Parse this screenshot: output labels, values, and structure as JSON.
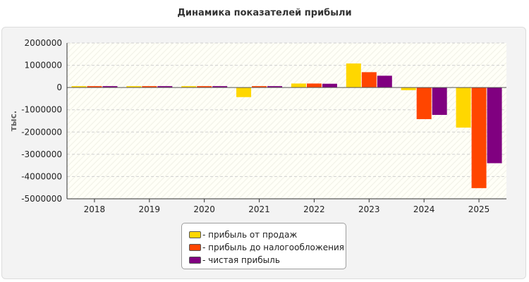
{
  "chart_data": {
    "type": "bar",
    "title": "Динамика показателей прибыли",
    "xlabel": "",
    "ylabel": "тыс.",
    "ylim": [
      -5000000,
      2000000
    ],
    "yticks": [
      2000000,
      1000000,
      0,
      -1000000,
      -2000000,
      -3000000,
      -4000000,
      -5000000
    ],
    "categories": [
      "2018",
      "2019",
      "2020",
      "2021",
      "2022",
      "2023",
      "2024",
      "2025"
    ],
    "series": [
      {
        "name": "- прибыль от продаж",
        "color": "#ffd700",
        "values": [
          45000,
          40000,
          40000,
          -430000,
          180000,
          1080000,
          -120000,
          -1800000
        ]
      },
      {
        "name": "- прибыль до налогообложения",
        "color": "#ff4500",
        "values": [
          45000,
          40000,
          40000,
          -50000,
          180000,
          690000,
          -1420000,
          -4520000
        ]
      },
      {
        "name": "- чистая прибыль",
        "color": "#800080",
        "values": [
          45000,
          40000,
          40000,
          -50000,
          170000,
          530000,
          -1230000,
          -3400000
        ]
      }
    ],
    "grid": true,
    "legend_position": "bottom"
  }
}
